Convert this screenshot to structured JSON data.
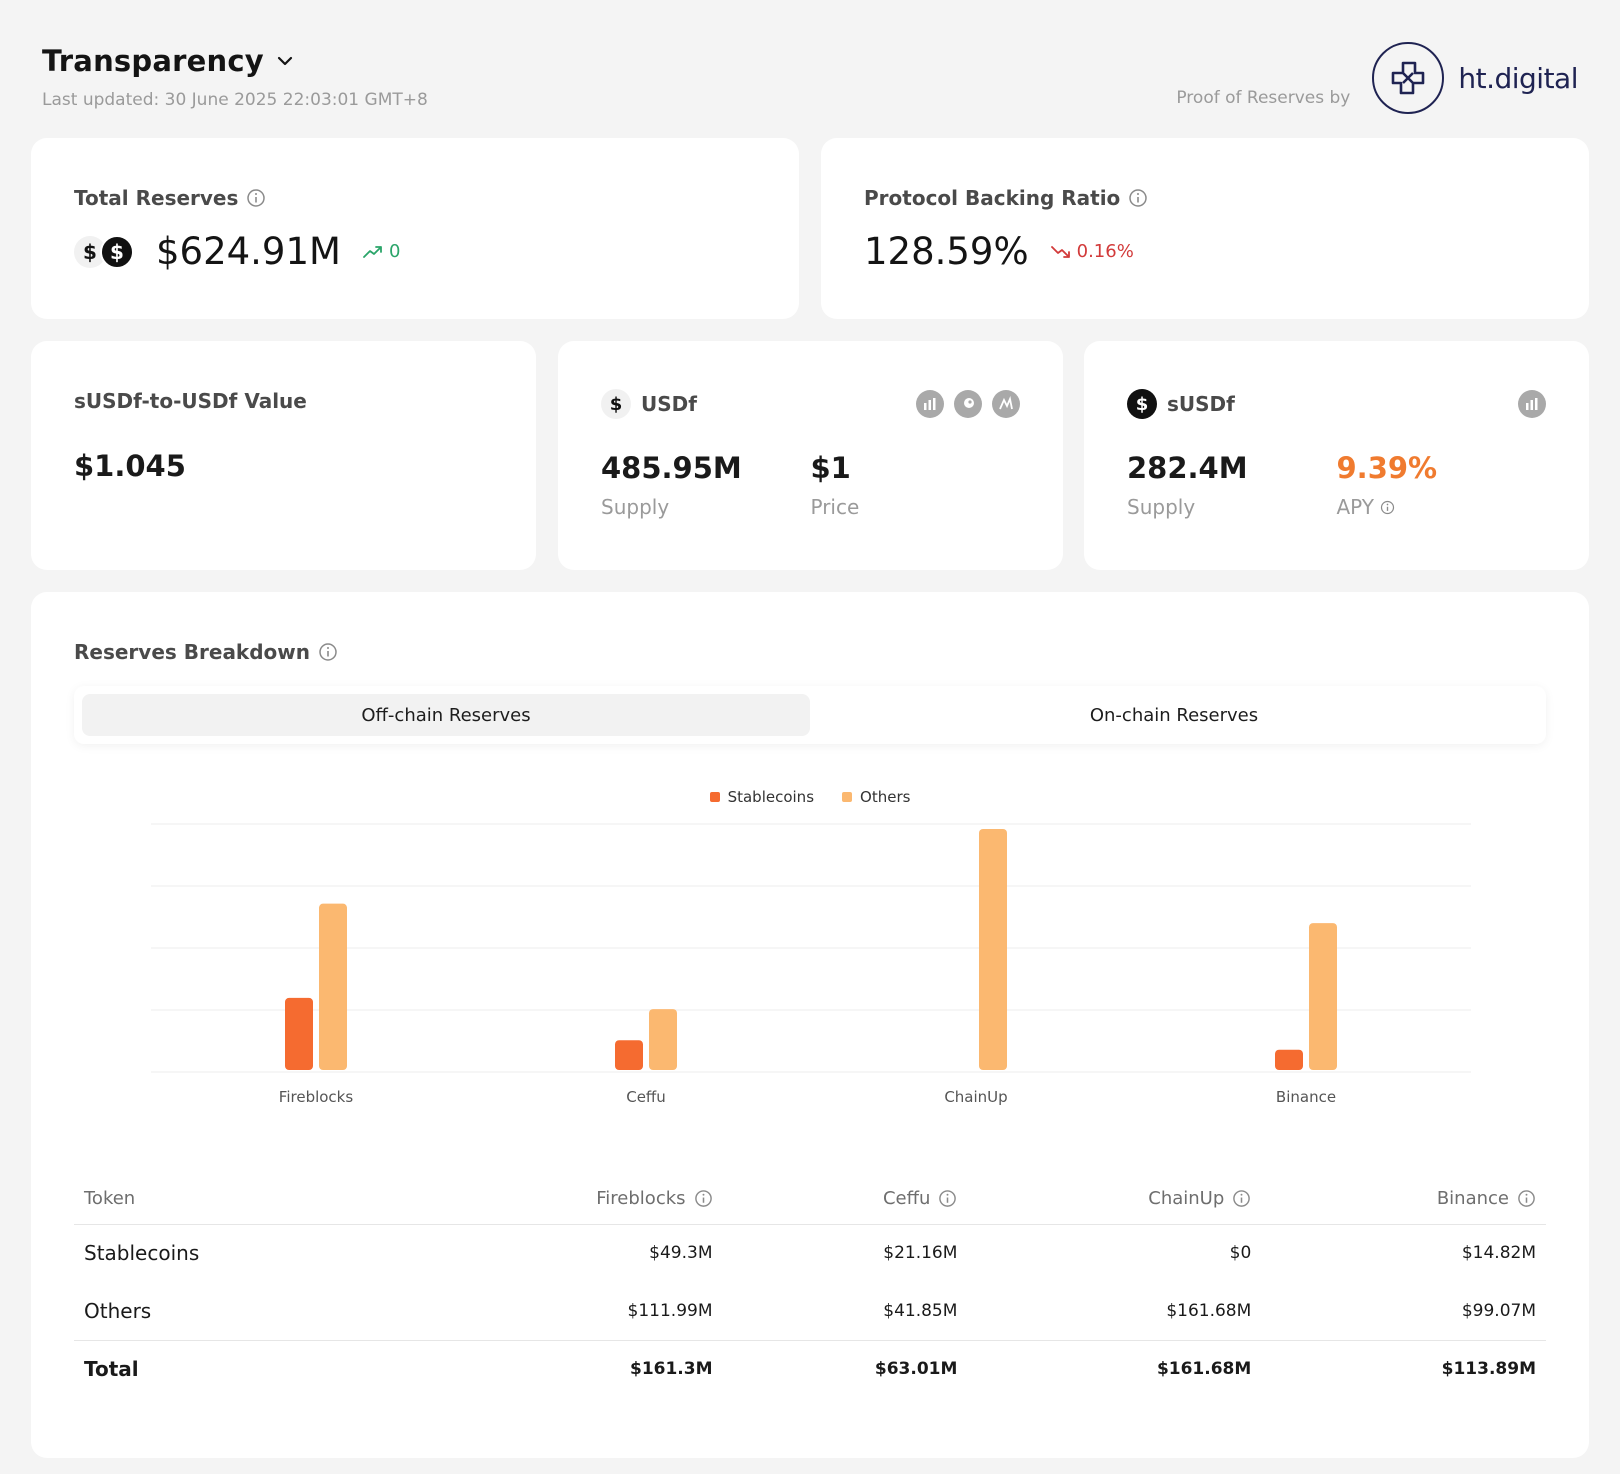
{
  "header": {
    "title": "Transparency",
    "last_updated": "Last updated: 30 June 2025 22:03:01 GMT+8",
    "por_label": "Proof of Reserves by",
    "logo_text": "ht.digital"
  },
  "total_reserves": {
    "label": "Total Reserves",
    "value": "$624.91M",
    "delta": "0"
  },
  "backing_ratio": {
    "label": "Protocol Backing Ratio",
    "value": "128.59%",
    "delta": "0.16%"
  },
  "susdf_value": {
    "label": "sUSDf-to-USDf Value",
    "value": "$1.045"
  },
  "usdf": {
    "name": "USDf",
    "supply_value": "485.95M",
    "supply_label": "Supply",
    "price_value": "$1",
    "price_label": "Price"
  },
  "susdf": {
    "name": "sUSDf",
    "supply_value": "282.4M",
    "supply_label": "Supply",
    "apy_value": "9.39%",
    "apy_label": "APY"
  },
  "breakdown": {
    "label": "Reserves Breakdown",
    "tabs": [
      "Off-chain Reserves",
      "On-chain Reserves"
    ],
    "active_tab": 0
  },
  "colors": {
    "stablecoins": "#f56b30",
    "others": "#fbb870",
    "accent_orange": "#f07b2f",
    "up": "#2ba56a",
    "down": "#d23a3a"
  },
  "chart_data": {
    "type": "bar",
    "categories": [
      "Fireblocks",
      "Ceffu",
      "ChainUp",
      "Binance"
    ],
    "series": [
      {
        "name": "Stablecoins",
        "values": [
          49.3,
          21.16,
          0,
          14.82
        ]
      },
      {
        "name": "Others",
        "values": [
          111.99,
          41.85,
          161.68,
          99.07
        ]
      }
    ],
    "legend_position": "top-center",
    "grid": true,
    "ylim": [
      0,
      165
    ]
  },
  "table": {
    "headers": [
      "Token",
      "Fireblocks",
      "Ceffu",
      "ChainUp",
      "Binance"
    ],
    "rows": [
      [
        "Stablecoins",
        "$49.3M",
        "$21.16M",
        "$0",
        "$14.82M"
      ],
      [
        "Others",
        "$111.99M",
        "$41.85M",
        "$161.68M",
        "$99.07M"
      ]
    ],
    "total": [
      "Total",
      "$161.3M",
      "$63.01M",
      "$161.68M",
      "$113.89M"
    ]
  }
}
